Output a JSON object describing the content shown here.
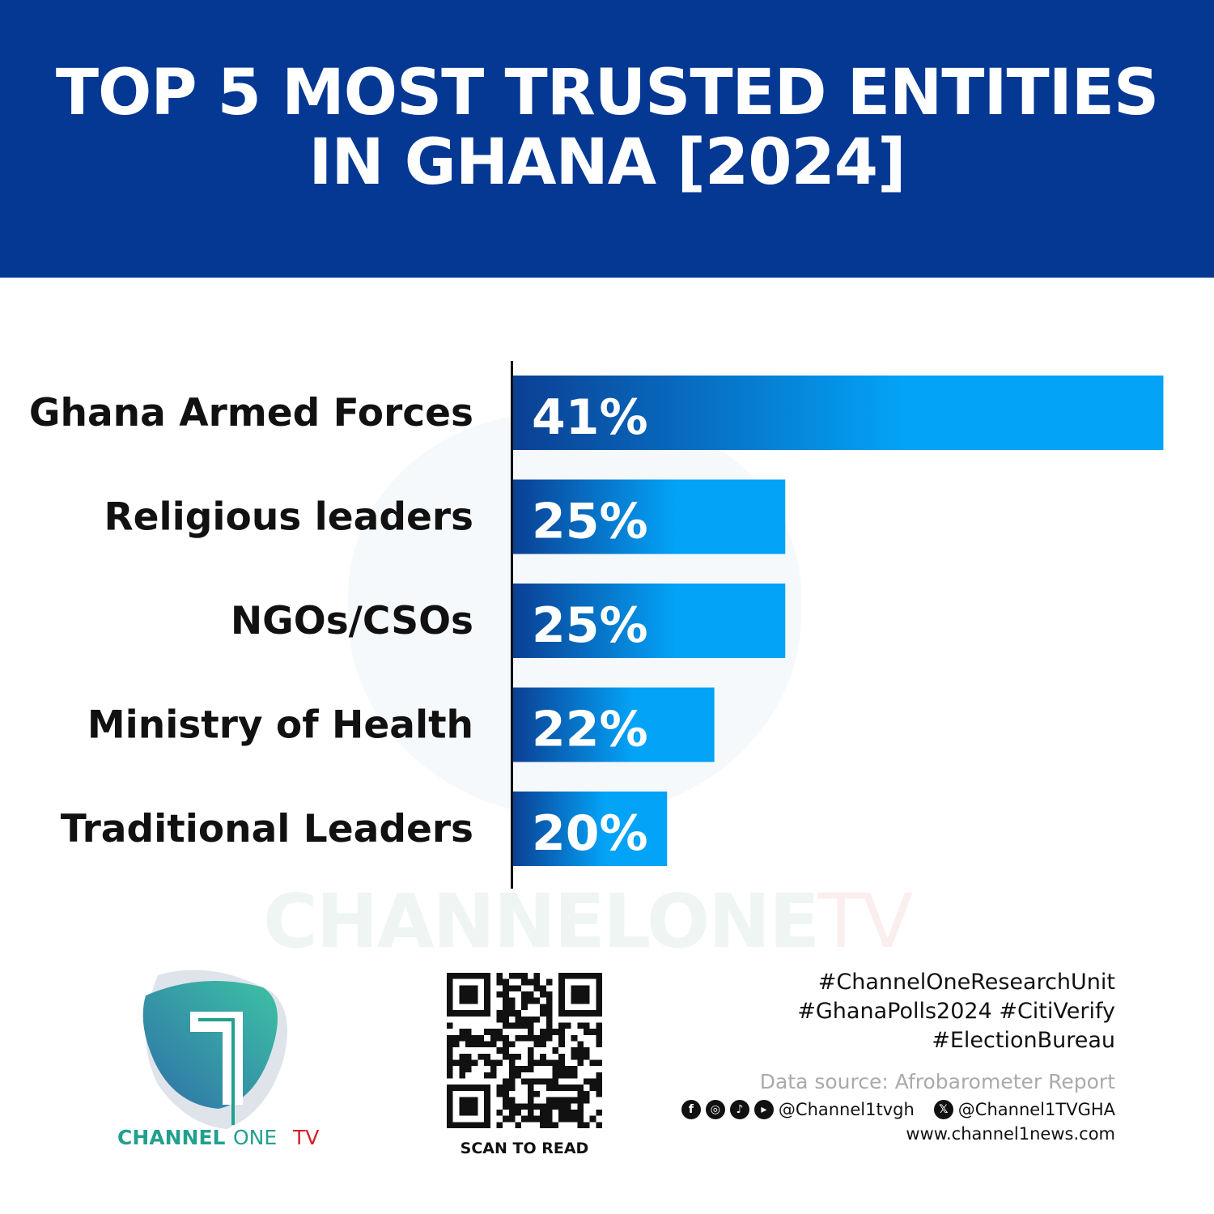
{
  "title_lines": [
    "TOP 5 MOST TRUSTED ENTITIES",
    "IN GHANA [2024]"
  ],
  "chart_data": {
    "type": "bar",
    "orientation": "horizontal",
    "title": "TOP 5 MOST TRUSTED ENTITIES IN GHANA [2024]",
    "categories": [
      "Ghana Armed Forces",
      "Religious leaders",
      "NGOs/CSOs",
      "Ministry of Health",
      "Traditional Leaders"
    ],
    "values": [
      41,
      25,
      25,
      22,
      20
    ],
    "data_labels": [
      "41%",
      "25%",
      "25%",
      "22%",
      "20%"
    ],
    "unit": "%",
    "grid": false,
    "colors": {
      "bar_start": "#0b3f93",
      "bar_end": "#03a3f7"
    }
  },
  "watermark": {
    "main": "CHANNELONE",
    "tv": "TV"
  },
  "logo": {
    "channel": "CHANNEL",
    "one": "ONE",
    "tv": "TV",
    "colors": {
      "teal": "#22a08f",
      "red": "#d0232a"
    }
  },
  "qr": {
    "caption": "SCAN TO READ"
  },
  "footer": {
    "hashtags": [
      "#ChannelOneResearchUnit",
      "#GhanaPolls2024 #CitiVerify",
      "#ElectionBureau"
    ],
    "source": "Data source: Afrobarometer Report",
    "social_icons": [
      "facebook-icon",
      "instagram-icon",
      "tiktok-icon",
      "youtube-icon"
    ],
    "handle_social": "@Channel1tvgh",
    "handle_x": "@Channel1TVGHA",
    "website": "www.channel1news.com"
  },
  "colors": {
    "header_bg": "#043893"
  }
}
